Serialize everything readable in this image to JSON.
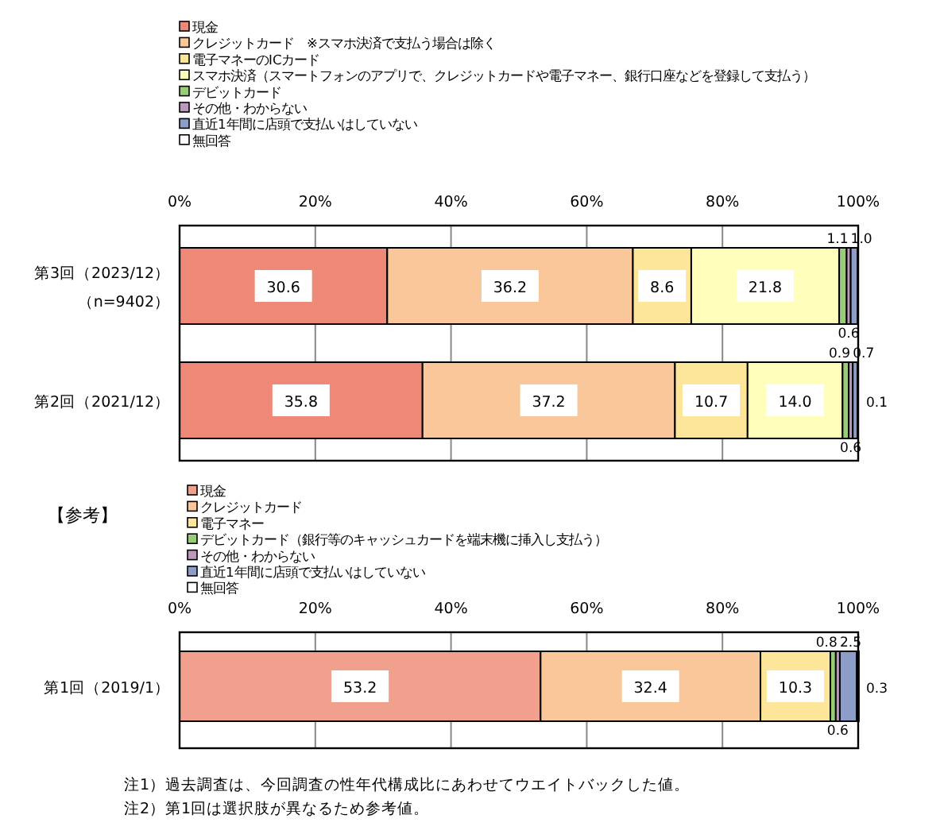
{
  "chart_data": [
    {
      "type": "bar",
      "orientation": "horizontal",
      "stacked": true,
      "grid": "x",
      "legend": "top",
      "categories": [
        "第3回（2023/12）（n=9402）",
        "第2回（2021/12）"
      ],
      "xlim": [
        0,
        100
      ],
      "xticks": [
        {
          "value": 0,
          "label": "0%"
        },
        {
          "value": 20,
          "label": "20%"
        },
        {
          "value": 40,
          "label": "40%"
        },
        {
          "value": 60,
          "label": "60%"
        },
        {
          "value": 80,
          "label": "80%"
        },
        {
          "value": 100,
          "label": "100%"
        }
      ],
      "series": [
        {
          "name": "現金",
          "color": "#ee8877",
          "values": [
            30.6,
            35.8
          ],
          "value_labels": [
            "30.6",
            "35.8"
          ]
        },
        {
          "name": "クレジットカード　※スマホ決済で支払う場合は除く",
          "color": "#f9c799",
          "values": [
            36.2,
            37.2
          ],
          "value_labels": [
            "36.2",
            "37.2"
          ]
        },
        {
          "name": "電子マネーのICカード",
          "color": "#fde699",
          "values": [
            8.6,
            10.7
          ],
          "value_labels": [
            "8.6",
            "10.7"
          ]
        },
        {
          "name": "スマホ決済（スマートフォンのアプリで、クレジットカードや電子マネー、銀行口座などを登録して支払う）",
          "color": "#ffffbb",
          "values": [
            21.8,
            14.0
          ],
          "value_labels": [
            "21.8",
            "14.0"
          ]
        },
        {
          "name": "デビットカード",
          "color": "#99cc77",
          "values": [
            1.1,
            0.9
          ],
          "value_labels": [
            "1.1",
            "0.9"
          ]
        },
        {
          "name": "その他・わからない",
          "color": "#bb99bb",
          "values": [
            0.6,
            0.6
          ],
          "value_labels": [
            "0.6",
            "0.6"
          ]
        },
        {
          "name": "直近1年間に店頭で支払いはしていない",
          "color": "#8c9dc8",
          "values": [
            1.0,
            0.7
          ],
          "value_labels": [
            "1.0",
            "0.7"
          ]
        },
        {
          "name": "無回答",
          "color": "#ffffff",
          "values": [
            null,
            0.1
          ],
          "value_labels": [
            null,
            "0.1"
          ]
        }
      ]
    },
    {
      "type": "bar",
      "orientation": "horizontal",
      "stacked": true,
      "grid": "x",
      "legend": "top",
      "title": "【参考】",
      "categories": [
        "第1回（2019/1）"
      ],
      "xlim": [
        0,
        100
      ],
      "xticks": [
        {
          "value": 0,
          "label": "0%"
        },
        {
          "value": 20,
          "label": "20%"
        },
        {
          "value": 40,
          "label": "40%"
        },
        {
          "value": 60,
          "label": "60%"
        },
        {
          "value": 80,
          "label": "80%"
        },
        {
          "value": 100,
          "label": "100%"
        }
      ],
      "series": [
        {
          "name": "現金",
          "color": "#f0a08c",
          "values": [
            53.2
          ],
          "value_labels": [
            "53.2"
          ]
        },
        {
          "name": "クレジットカード",
          "color": "#f9c799",
          "values": [
            32.4
          ],
          "value_labels": [
            "32.4"
          ]
        },
        {
          "name": "電子マネー",
          "color": "#fde699",
          "values": [
            10.3
          ],
          "value_labels": [
            "10.3"
          ]
        },
        {
          "name": "デビットカード（銀行等のキャッシュカードを端末機に挿入し支払う）",
          "color": "#99cc77",
          "values": [
            0.8
          ],
          "value_labels": [
            "0.8"
          ]
        },
        {
          "name": "その他・わからない",
          "color": "#bb99bb",
          "values": [
            0.6
          ],
          "value_labels": [
            "0.6"
          ]
        },
        {
          "name": "直近1年間に店頭で支払いはしていない",
          "color": "#8c9dc8",
          "values": [
            2.5
          ],
          "value_labels": [
            "2.5"
          ]
        },
        {
          "name": "無回答",
          "color": "#ffffff",
          "values": [
            0.3
          ],
          "value_labels": [
            "0.3"
          ]
        }
      ],
      "annotations": [
        "注1）過去調査は、今回調査の性年代構成比にあわせてウエイトバックした値。",
        "注2）第1回は選択肢が異なるため参考値。"
      ]
    }
  ]
}
